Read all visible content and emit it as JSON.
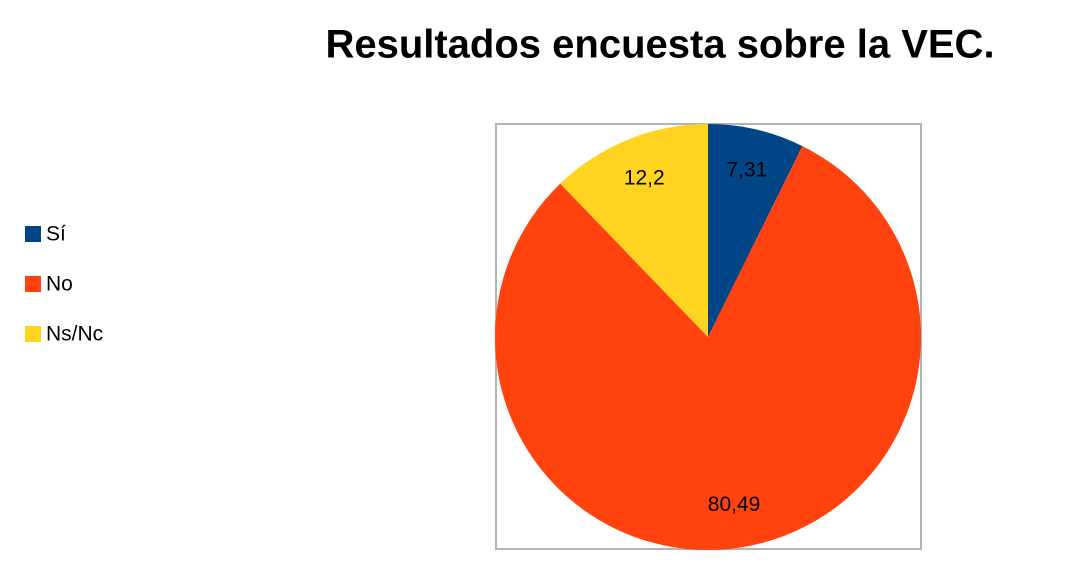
{
  "chart_data": {
    "type": "pie",
    "title": "Resultados encuesta sobre la VEC.",
    "categories": [
      "Sí",
      "No",
      "Ns/Nc"
    ],
    "values": [
      7.31,
      80.49,
      12.2
    ],
    "value_labels": [
      "7,31",
      "80,49",
      "12,2"
    ],
    "colors": [
      "#004586",
      "#ff420e",
      "#ffd320"
    ],
    "legend": "left"
  }
}
